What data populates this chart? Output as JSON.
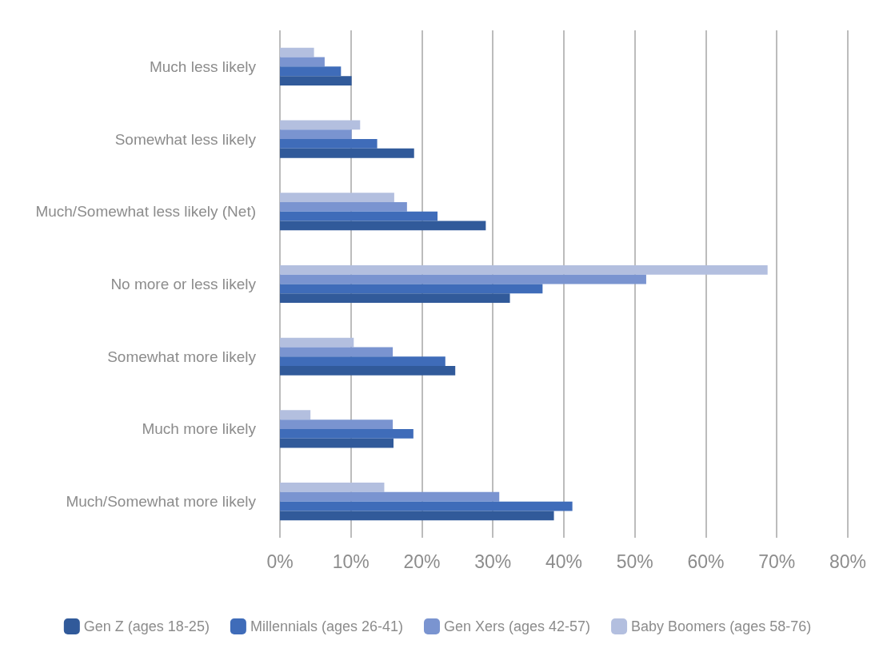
{
  "chart_data": {
    "type": "bar",
    "orientation": "horizontal",
    "categories": [
      "Much less likely",
      "Somewhat less likely",
      "Much/Somewhat less likely (Net)",
      "No more or less likely",
      "Somewhat more likely",
      "Much more likely",
      "Much/Somewhat more likely"
    ],
    "series": [
      {
        "name": "Gen Z (ages 18-25)",
        "color": "#315a9a",
        "values": [
          10.1,
          18.9,
          29.0,
          32.4,
          24.7,
          16.0,
          38.6
        ]
      },
      {
        "name": "Millennials (ages 26-41)",
        "color": "#3f6cb9",
        "values": [
          8.6,
          13.7,
          22.2,
          37.0,
          23.3,
          18.8,
          41.2
        ]
      },
      {
        "name": "Gen Xers (ages 42-57)",
        "color": "#7a94d0",
        "values": [
          6.3,
          10.1,
          17.9,
          51.6,
          15.9,
          15.9,
          30.9
        ]
      },
      {
        "name": "Baby Boomers (ages 58-76)",
        "color": "#b3bfdf",
        "values": [
          4.8,
          11.3,
          16.1,
          68.7,
          10.4,
          4.3,
          14.7
        ]
      }
    ],
    "xlim": [
      0,
      80
    ],
    "xticks": [
      {
        "value": 0,
        "label": "0%"
      },
      {
        "value": 10,
        "label": "10%"
      },
      {
        "value": 20,
        "label": "20%"
      },
      {
        "value": 30,
        "label": "30%"
      },
      {
        "value": 40,
        "label": "40%"
      },
      {
        "value": 50,
        "label": "50%"
      },
      {
        "value": 60,
        "label": "60%"
      },
      {
        "value": 70,
        "label": "70%"
      },
      {
        "value": 80,
        "label": "80%"
      }
    ],
    "grid": "x",
    "legend": "bottom"
  }
}
